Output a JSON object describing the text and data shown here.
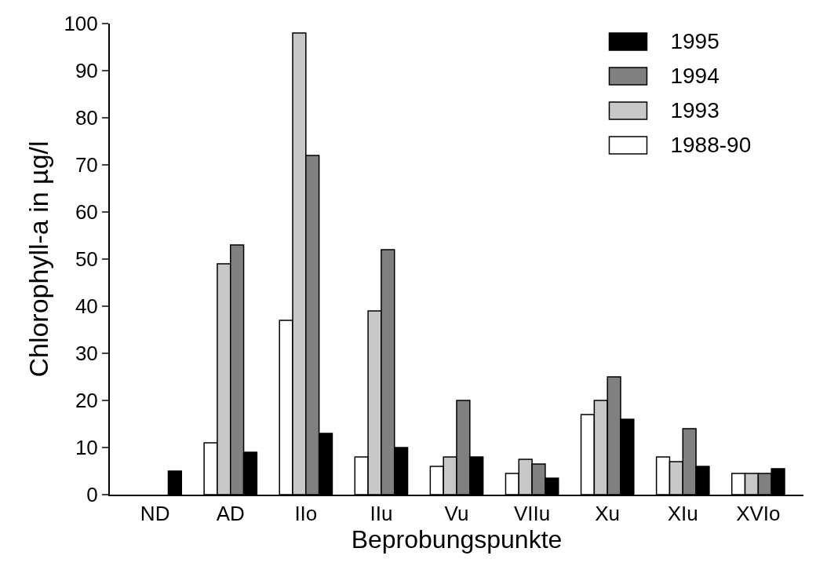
{
  "chart_data": {
    "type": "bar",
    "xlabel": "Beprobungspunkte",
    "ylabel": "Chlorophyll-a in µg/l",
    "categories": [
      "ND",
      "AD",
      "IIo",
      "IIu",
      "Vu",
      "VIIu",
      "Xu",
      "XIu",
      "XVIo"
    ],
    "series": [
      {
        "name": "1988-90",
        "color": "#ffffff",
        "values": [
          null,
          11,
          37,
          8,
          6,
          4.5,
          17,
          8,
          4.5
        ]
      },
      {
        "name": "1993",
        "color": "#c8c8c8",
        "values": [
          null,
          49,
          98,
          39,
          8,
          7.5,
          20,
          7,
          4.5
        ]
      },
      {
        "name": "1994",
        "color": "#808080",
        "values": [
          null,
          53,
          72,
          52,
          20,
          6.5,
          25,
          14,
          4.5
        ]
      },
      {
        "name": "1995",
        "color": "#000000",
        "values": [
          5,
          9,
          13,
          10,
          8,
          3.5,
          16,
          6,
          5.5
        ]
      }
    ],
    "ylim": [
      0,
      100
    ],
    "yticks": [
      0,
      10,
      20,
      30,
      40,
      50,
      60,
      70,
      80,
      90,
      100
    ],
    "grid": false,
    "legend": "top right"
  }
}
